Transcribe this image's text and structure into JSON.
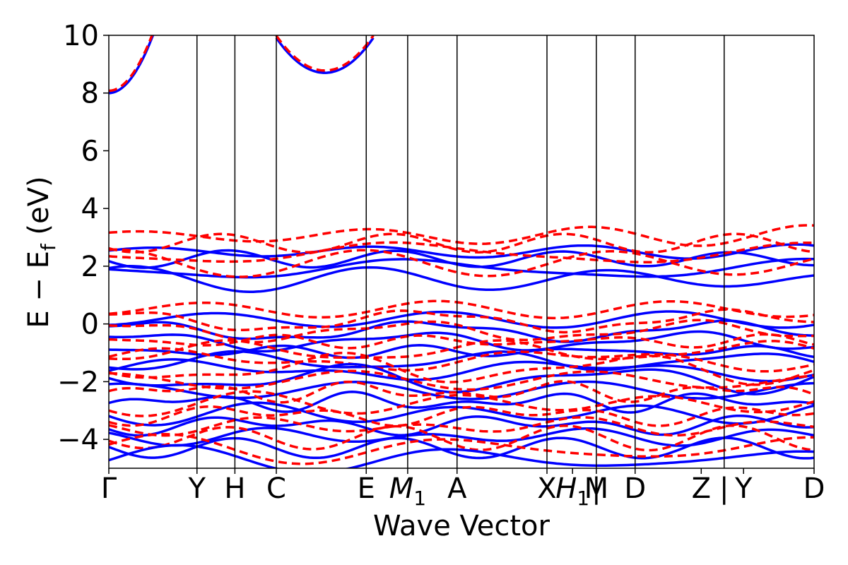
{
  "chart_data": {
    "type": "line",
    "title": "",
    "xlabel": "Wave Vector",
    "ylabel": "E − E_f (eV)",
    "ylabel_main": "E − E",
    "ylabel_sub": "f",
    "ylabel_unit": " (eV)",
    "ylim": [
      -5,
      10
    ],
    "yticks": [
      -4,
      -2,
      0,
      2,
      4,
      6,
      8,
      10
    ],
    "ytick_labels": [
      "−4",
      "−2",
      "0",
      "2",
      "4",
      "6",
      "8",
      "10"
    ],
    "kpath": [
      {
        "label": "Γ",
        "x": 0.0
      },
      {
        "label": "Y",
        "x": 1.0
      },
      {
        "label": "H",
        "x": 1.43
      },
      {
        "label": "C",
        "x": 1.9
      },
      {
        "label": "E",
        "x": 2.92
      },
      {
        "label": "M",
        "sub": "1",
        "x": 3.39
      },
      {
        "label": "A",
        "x": 3.95
      },
      {
        "label": "X",
        "x": 4.97
      },
      {
        "label": "H",
        "sub": "1",
        "x": 5.26
      },
      {
        "label": "|",
        "x": 5.53
      },
      {
        "label": "M",
        "x": 5.53
      },
      {
        "label": "D",
        "x": 5.97
      },
      {
        "label": "Z",
        "x": 6.72
      },
      {
        "label": "|",
        "x": 6.98
      },
      {
        "label": "Y",
        "x": 7.2
      },
      {
        "label": "D",
        "x": 8.0
      }
    ],
    "vlines": [
      1.0,
      1.43,
      1.9,
      2.92,
      3.39,
      3.95,
      4.97,
      5.53,
      5.97,
      6.98
    ],
    "xlim": [
      0.0,
      8.0
    ],
    "series": [
      {
        "style": "solid",
        "color": "#0000ff"
      },
      {
        "style": "dashed",
        "color": "#ff0000"
      }
    ],
    "grid": false,
    "legend": "none"
  }
}
